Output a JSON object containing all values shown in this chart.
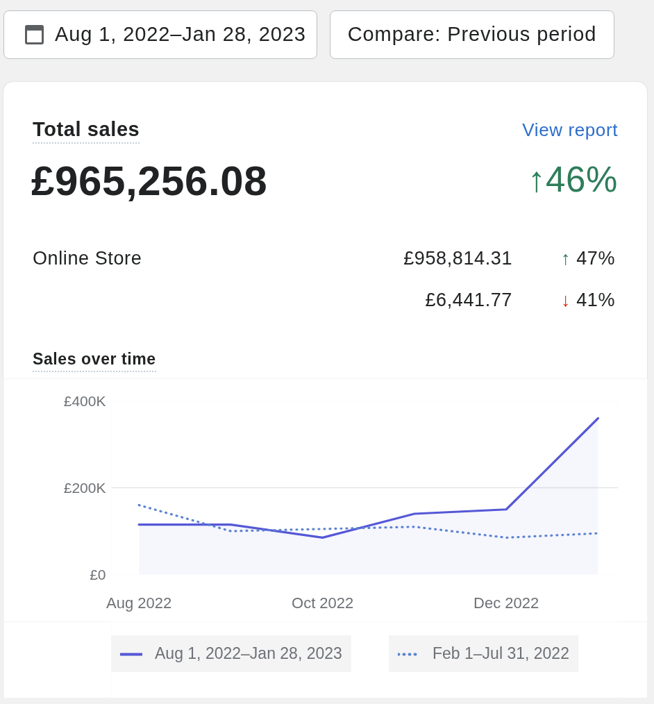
{
  "chart_data": {
    "type": "line",
    "title": "Sales over time",
    "categories": [
      "Aug 2022",
      null,
      "Oct 2022",
      null,
      "Dec 2022",
      null
    ],
    "series": [
      {
        "name": "Aug 1, 2022–Jan 28, 2023",
        "type": "area",
        "color": "#5558d6",
        "values": [
          115000,
          115000,
          85000,
          140000,
          150000,
          360000
        ]
      },
      {
        "name": "Feb 1–Jul 31, 2022",
        "line_style": "dotted",
        "color": "#5b83d0",
        "values": [
          160000,
          100000,
          105000,
          110000,
          85000,
          95000
        ]
      }
    ],
    "ylim": [
      0,
      400000
    ],
    "yticks": [
      {
        "value": 0,
        "label": "£0"
      },
      {
        "value": 200000,
        "label": "£200K"
      },
      {
        "value": 400000,
        "label": "£400K"
      }
    ],
    "grid": "y",
    "legend": "bottom",
    "annotations": [
      "Aug 1, 2022–Jan 28, 2023",
      "Compare: Previous period",
      "Total sales",
      "View report",
      "£965,256.08",
      "↑46%",
      "Online Store",
      "£958,814.31",
      "↑ 47%",
      "£6,441.77",
      "↓ 41%"
    ]
  }
}
